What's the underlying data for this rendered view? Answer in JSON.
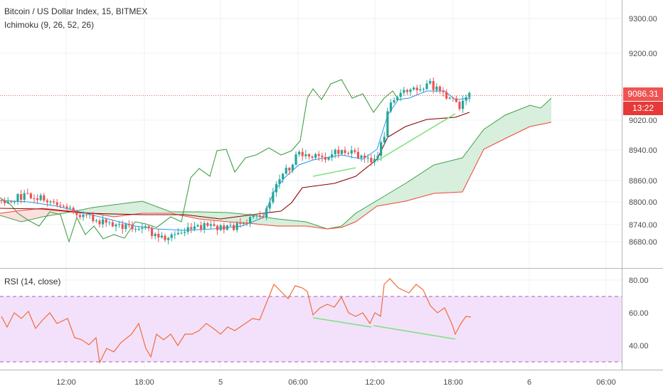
{
  "chart_data": [
    {
      "type": "candlestick",
      "title": "Bitcoin / US Dollar Index, 15, BITMEX",
      "indicator": "Ichimoku (9, 26, 52, 26)",
      "ylim": [
        8630,
        9340
      ],
      "yticks": [
        8680,
        8740,
        8800,
        8860,
        8940,
        9020,
        9200,
        9300
      ],
      "ytick_labels": [
        "8680.00",
        "8740.00",
        "8800.00",
        "8860.00",
        "8940.00",
        "9020.00",
        "9200.00",
        "9300.00"
      ],
      "last_price": 9086.31,
      "last_price_label": "9086.31",
      "countdown_label": "13:22",
      "xticks": [
        "12:00",
        "18:00",
        "5",
        "06:00",
        "12:00",
        "18:00",
        "6",
        "06:00"
      ],
      "grid": true,
      "colors": {
        "up": "#26a69a",
        "down": "#ef5350",
        "lagging": "#43a047",
        "conversion": "#2196f3",
        "base": "#8b0000",
        "leading_a": "#43a047",
        "leading_b": "#f44336",
        "cloud_bull": "#cdebd3",
        "cloud_bear": "#fbd7d7",
        "annotation": "#7ee27e",
        "last_price": "#ef5350"
      }
    },
    {
      "type": "line",
      "title": "RSI (14, close)",
      "ylim": [
        28,
        88
      ],
      "yticks": [
        40,
        60,
        80
      ],
      "ytick_labels": [
        "40.00",
        "60.00",
        "80.00"
      ],
      "band": [
        30,
        70
      ],
      "grid": true,
      "colors": {
        "line": "#f26b3a",
        "band": "#f3e1fb",
        "band_border": "#a45fb8",
        "annotation": "#7ee27e"
      }
    }
  ]
}
